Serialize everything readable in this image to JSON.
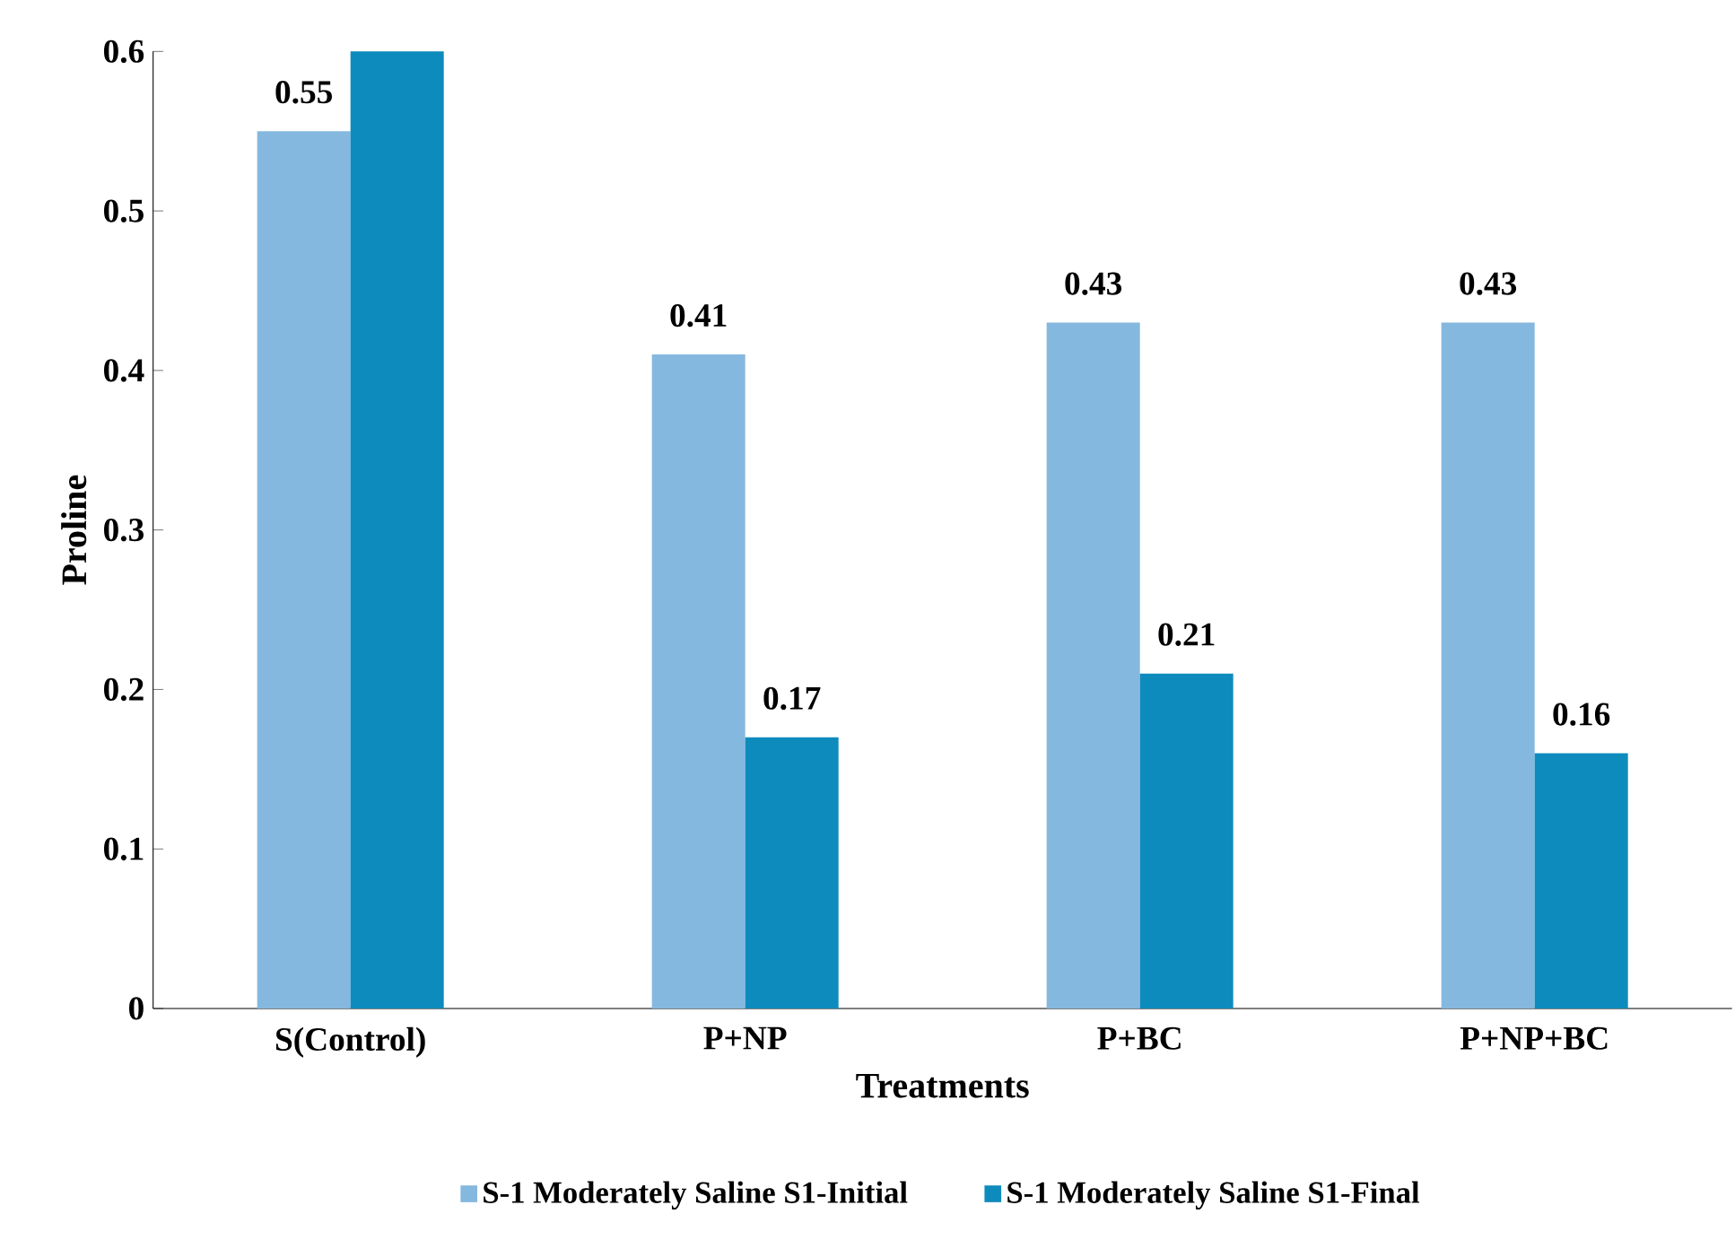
{
  "chart_data": {
    "type": "bar",
    "xlabel": "Treatments",
    "ylabel": "Proline",
    "categories": [
      "S(Control)",
      "P+NP",
      "P+BC",
      "P+NP+BC"
    ],
    "series": [
      {
        "name": "S-1 Moderately Saline S1-Initial",
        "color": "#85b8de",
        "values": [
          0.55,
          0.41,
          0.43,
          0.43
        ],
        "value_labels": [
          "0.55",
          "0.41",
          "0.43",
          "0.43"
        ]
      },
      {
        "name": "S-1 Moderately Saline S1-Final",
        "color": "#0e8bbd",
        "values": [
          0.6,
          0.17,
          0.21,
          0.16
        ],
        "value_labels": [
          null,
          "0.17",
          "0.21",
          "0.16"
        ]
      }
    ],
    "ylim": [
      0,
      0.6
    ],
    "yticks": [
      0,
      0.1,
      0.2,
      0.3,
      0.4,
      0.5,
      0.6
    ],
    "grid": false,
    "legend": "bottom"
  }
}
